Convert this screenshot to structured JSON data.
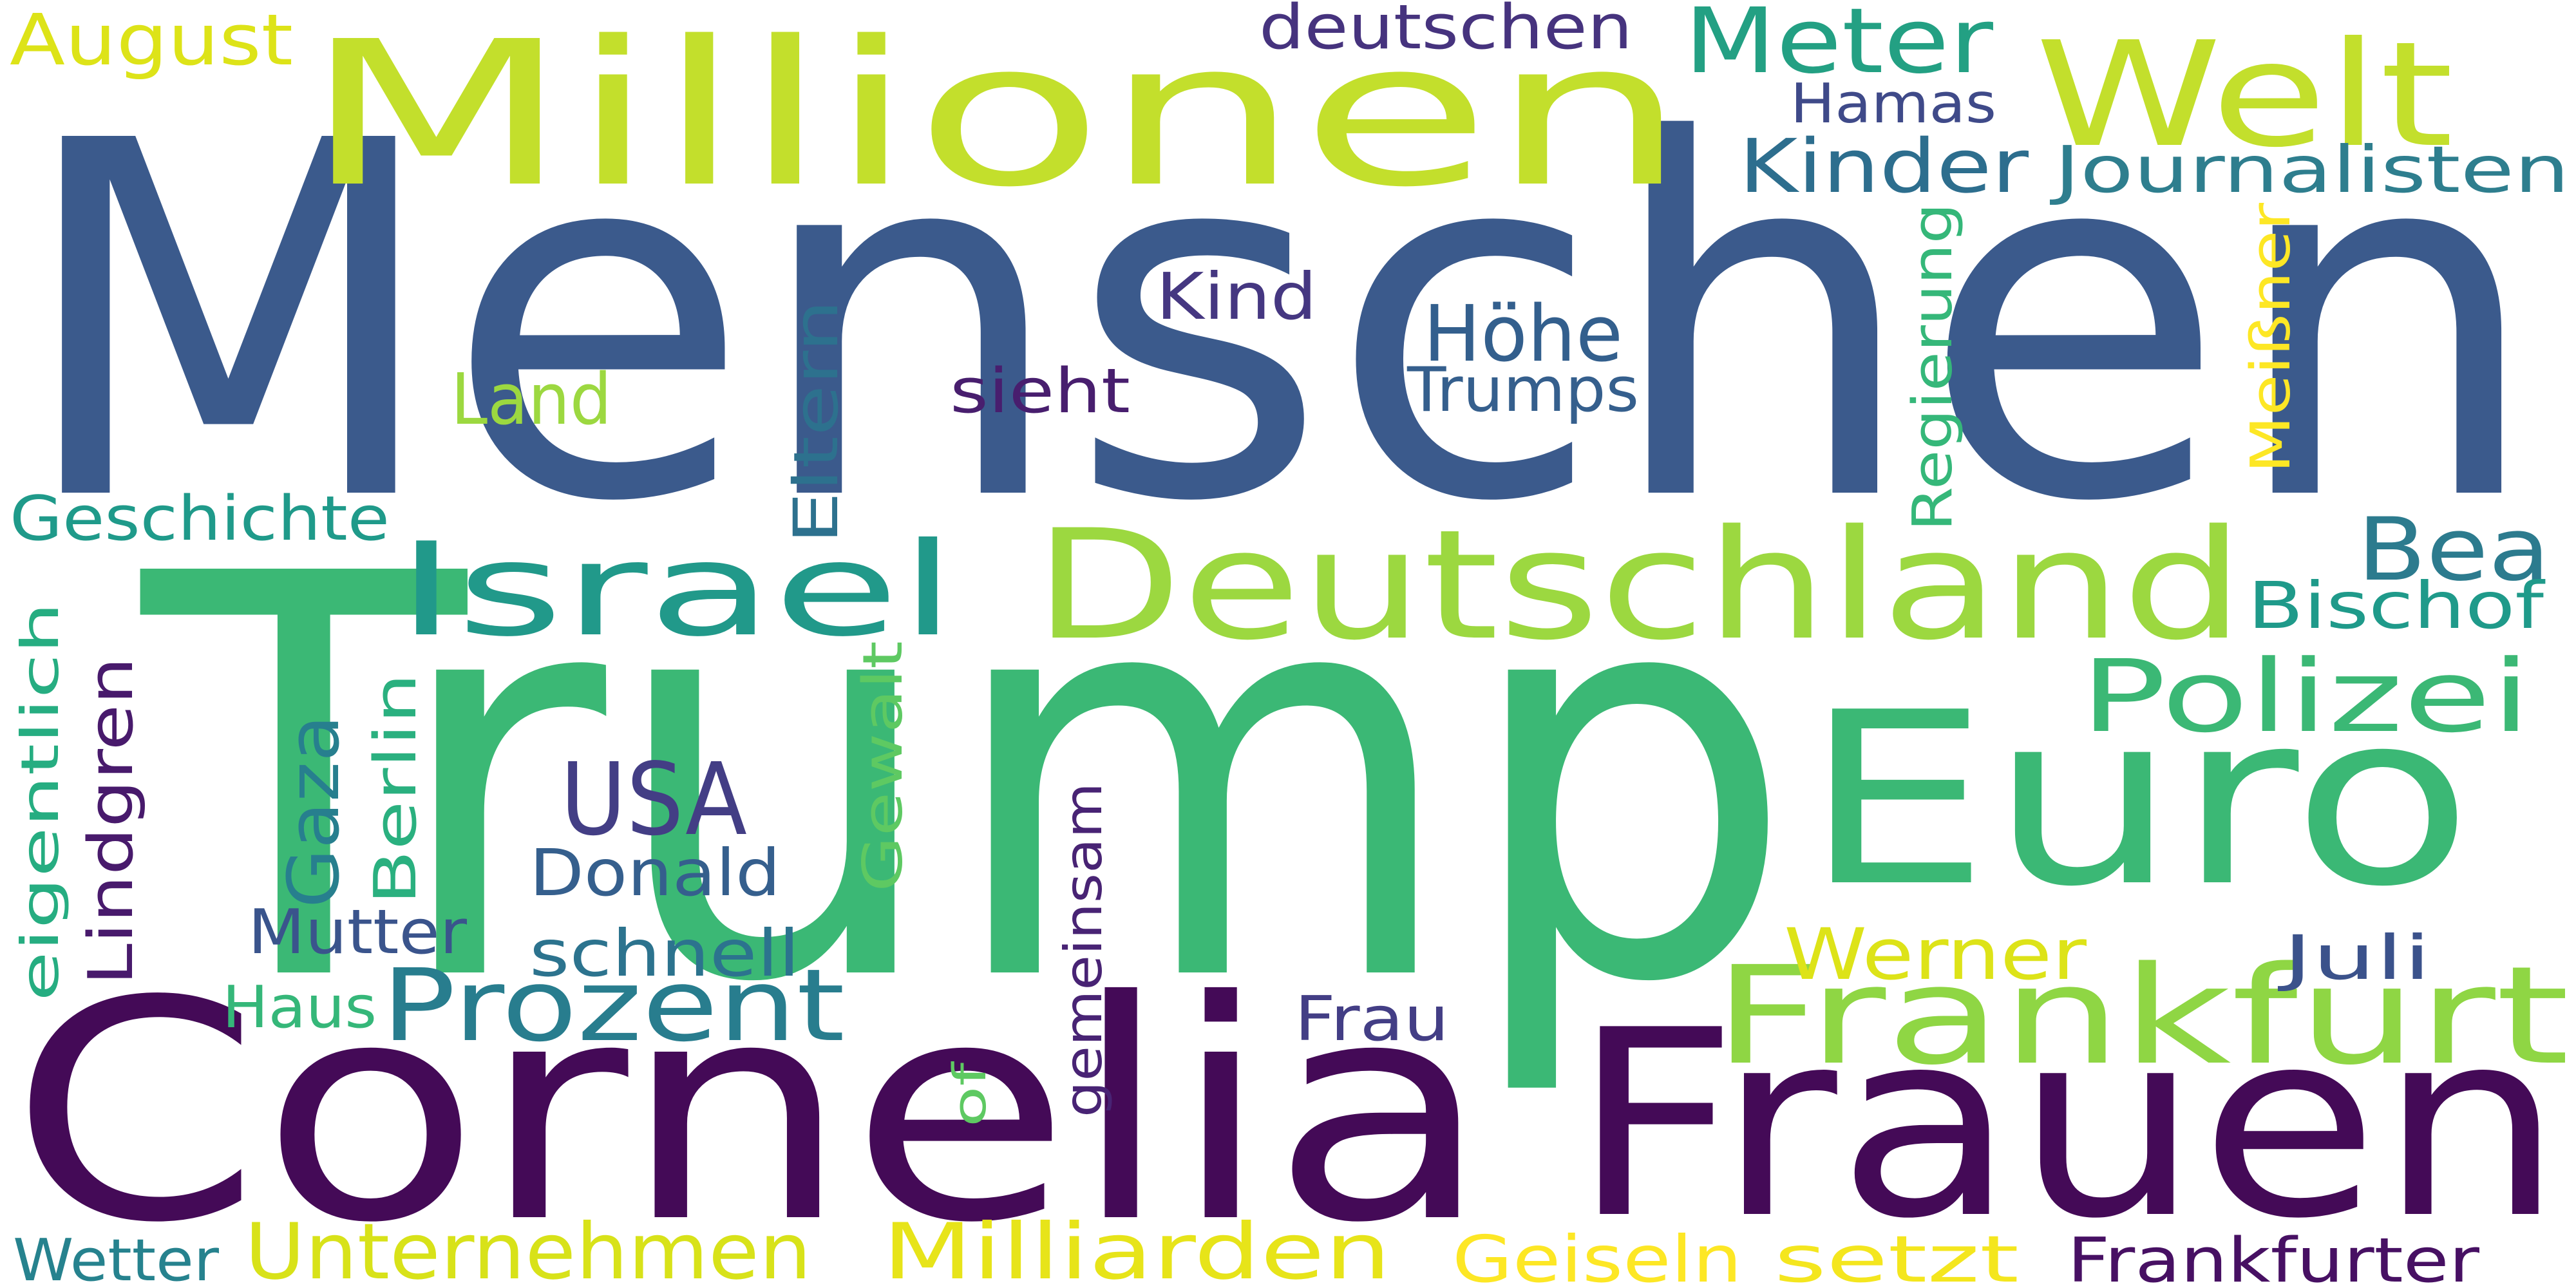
{
  "words": [
    {
      "text": "Menschen",
      "color": "#3b5a8c"
    },
    {
      "text": "Trump",
      "color": "#3bb875"
    },
    {
      "text": "Millionen",
      "color": "#c3df2c"
    },
    {
      "text": "Cornelia",
      "color": "#440a57"
    },
    {
      "text": "Frauen",
      "color": "#440a57"
    },
    {
      "text": "Euro",
      "color": "#3bb875"
    },
    {
      "text": "Deutschland",
      "color": "#9cd840"
    },
    {
      "text": "Welt",
      "color": "#c3df2c"
    },
    {
      "text": "Frankfurt",
      "color": "#8fd644"
    },
    {
      "text": "Israel",
      "color": "#21998a"
    },
    {
      "text": "Meter",
      "color": "#23a083"
    },
    {
      "text": "Prozent",
      "color": "#287d8e"
    },
    {
      "text": "Polizei",
      "color": "#3bb875"
    },
    {
      "text": "Bea",
      "color": "#2c7b8e"
    },
    {
      "text": "USA",
      "color": "#433e85"
    },
    {
      "text": "Kinder",
      "color": "#2d6e8e"
    },
    {
      "text": "Höhe",
      "color": "#335f8d"
    },
    {
      "text": "Journalisten",
      "color": "#2e7e8e"
    },
    {
      "text": "deutschen",
      "color": "#46337e"
    },
    {
      "text": "Hamas",
      "color": "#3f4a89"
    },
    {
      "text": "Kind",
      "color": "#453781"
    },
    {
      "text": "Trumps",
      "color": "#355f8d"
    },
    {
      "text": "sieht",
      "color": "#481e6e"
    },
    {
      "text": "Land",
      "color": "#9cd840"
    },
    {
      "text": "August",
      "color": "#dde318"
    },
    {
      "text": "Geschichte",
      "color": "#1f9a8a"
    },
    {
      "text": "Bischof",
      "color": "#1f9a8a"
    },
    {
      "text": "Donald",
      "color": "#355f8d"
    },
    {
      "text": "Mutter",
      "color": "#3a548c"
    },
    {
      "text": "schnell",
      "color": "#2c738e"
    },
    {
      "text": "Werner",
      "color": "#dde318"
    },
    {
      "text": "Juli",
      "color": "#3b528b"
    },
    {
      "text": "Haus",
      "color": "#35b779"
    },
    {
      "text": "Frau",
      "color": "#433e85"
    },
    {
      "text": "Unternehmen",
      "color": "#d8e219"
    },
    {
      "text": "Milliarden",
      "color": "#e7e419"
    },
    {
      "text": "Geiseln",
      "color": "#fde725"
    },
    {
      "text": "setzt",
      "color": "#f4e61e"
    },
    {
      "text": "Frankfurter",
      "color": "#471063"
    },
    {
      "text": "Wetter",
      "color": "#26828e"
    },
    {
      "text": "Regierung",
      "color": "#35b779"
    },
    {
      "text": "Meißner",
      "color": "#fde725"
    },
    {
      "text": "Eltern",
      "color": "#2d718e"
    },
    {
      "text": "Gaza",
      "color": "#277f8e"
    },
    {
      "text": "Berlin",
      "color": "#2ab07f"
    },
    {
      "text": "Gewalt",
      "color": "#5ec962"
    },
    {
      "text": "Lindgren",
      "color": "#481a6c"
    },
    {
      "text": "eigentlich",
      "color": "#26ad81"
    },
    {
      "text": "gemeinsam",
      "color": "#482374"
    },
    {
      "text": "of",
      "color": "#5ec962"
    }
  ]
}
